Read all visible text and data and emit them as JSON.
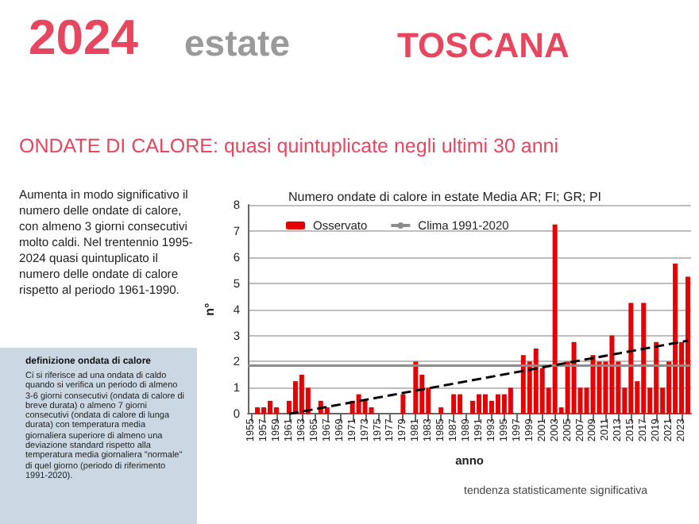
{
  "chart_data": {
    "type": "bar",
    "title": "Numero ondate di calore in estate Media AR; FI; GR; PI",
    "xlabel": "anno",
    "ylabel": "n°",
    "annotations": [
      "2024",
      "estate",
      "TOSCANA",
      "ONDATE DI CALORE: quasi quintuplicate negli ultimi 30 anni",
      "Aumenta in modo significativo il numero delle ondate di calore, con almeno 3 giorni consecutivi molto caldi.  Nel trentennio 1995-2024 quasi quintuplicato il numero delle ondate di calore rispetto al periodo 1961-1990.",
      "definizione ondata di calore",
      "Ci si riferisce ad una ondata di caldo quando si verifica un periodo di almeno 3-6 giorni consecutivi (ondata di calore di breve durata) o almeno 7 giorni consecutivi (ondata di calore di lunga durata) con temperatura media giornaliera superiore di almeno una deviazione standard rispetto alla temperatura media giornaliera \"normale\" di quel giorno (periodo di riferimento 1991-2020).",
      "tendenza statisticamente significativa"
    ],
    "x": [
      1955,
      1956,
      1957,
      1958,
      1959,
      1960,
      1961,
      1962,
      1963,
      1964,
      1965,
      1966,
      1967,
      1968,
      1969,
      1970,
      1971,
      1972,
      1973,
      1974,
      1975,
      1976,
      1977,
      1978,
      1979,
      1980,
      1981,
      1982,
      1983,
      1984,
      1985,
      1986,
      1987,
      1988,
      1989,
      1990,
      1991,
      1992,
      1993,
      1994,
      1995,
      1996,
      1997,
      1998,
      1999,
      2000,
      2001,
      2002,
      2003,
      2004,
      2005,
      2006,
      2007,
      2008,
      2009,
      2010,
      2011,
      2012,
      2013,
      2014,
      2015,
      2016,
      2017,
      2018,
      2019,
      2020,
      2021,
      2022,
      2023,
      2024
    ],
    "series": [
      {
        "name": "Osservato",
        "color": "#e60000",
        "values": [
          0,
          0.25,
          0.25,
          0.5,
          0.25,
          0,
          0.5,
          1.25,
          1.5,
          1,
          0,
          0.5,
          0.25,
          0,
          0,
          0,
          0.5,
          0.75,
          0.5,
          0.25,
          0,
          0,
          0,
          0,
          0.75,
          0,
          2,
          1.5,
          1,
          0,
          0.25,
          0,
          0.75,
          0.75,
          0,
          0.5,
          0.75,
          0.75,
          0.5,
          0.75,
          0.75,
          1,
          0,
          2.25,
          2,
          2.5,
          1.75,
          1,
          7.25,
          0.25,
          2,
          2.75,
          1,
          1,
          2.25,
          2,
          2,
          3,
          2,
          1,
          4.25,
          1.25,
          4.25,
          1,
          2.75,
          1,
          2,
          5.75,
          2.75,
          5.25
        ]
      },
      {
        "name": "Clima 1991-2020",
        "type": "line",
        "color": "#8c8c8c",
        "x": [
          1954.5,
          2024.5
        ],
        "values": [
          1.85,
          1.85
        ]
      },
      {
        "type": "line",
        "color": "#000000",
        "line_style": "dashed",
        "x": [
          1961,
          2024
        ],
        "values": [
          0,
          2.8
        ]
      }
    ],
    "xlim": [
      1954.5,
      2024.5
    ],
    "xticks": [
      1955,
      1957,
      1959,
      1961,
      1963,
      1965,
      1967,
      1969,
      1971,
      1973,
      1975,
      1977,
      1979,
      1981,
      1983,
      1985,
      1987,
      1989,
      1991,
      1993,
      1995,
      1997,
      1999,
      2001,
      2003,
      2005,
      2007,
      2009,
      2011,
      2013,
      2015,
      2017,
      2019,
      2021,
      2023
    ],
    "ylim": [
      0,
      8
    ],
    "yticks": [
      0,
      1,
      2,
      3,
      4,
      5,
      6,
      7,
      8
    ],
    "grid": "y",
    "legend": "top left",
    "marker": "none"
  }
}
